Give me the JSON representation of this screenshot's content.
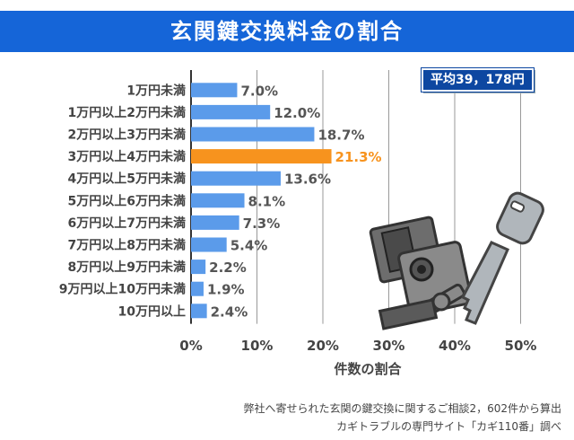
{
  "title": "玄関鍵交換料金の割合",
  "average_label": "平均39，178円",
  "footer": {
    "line1": "弊社へ寄せられた玄関の鍵交換に関するご相談2，602件から算出",
    "line2": "カギトラブルの専門サイト「カギ110番」調べ"
  },
  "chart_data": {
    "type": "bar",
    "orientation": "horizontal",
    "title": "玄関鍵交換料金の割合",
    "xlabel": "件数の割合",
    "ylabel": "",
    "xlim": [
      0,
      55
    ],
    "xticks": [
      0,
      10,
      20,
      30,
      40,
      50
    ],
    "xtick_labels": [
      "0%",
      "10%",
      "20%",
      "30%",
      "40%",
      "50%"
    ],
    "categories": [
      "1万円未満",
      "1万円以上2万円未満",
      "2万円以上3万円未満",
      "3万円以上4万円未満",
      "4万円以上5万円未満",
      "5万円以上6万円未満",
      "6万円以上7万円未満",
      "7万円以上8万円未満",
      "8万円以上9万円未満",
      "9万円以上10万円未満",
      "10万円以上"
    ],
    "values": [
      7.0,
      12.0,
      18.7,
      21.3,
      13.6,
      8.1,
      7.3,
      5.4,
      2.2,
      1.9,
      2.4
    ],
    "value_labels": [
      "7.0%",
      "12.0%",
      "18.7%",
      "21.3%",
      "13.6%",
      "8.1%",
      "7.3%",
      "5.4%",
      "2.2%",
      "1.9%",
      "2.4%"
    ],
    "highlight_index": 3,
    "colors": {
      "bar": "#5b9bea",
      "highlight": "#f7931e",
      "label": "#555555",
      "highlight_label": "#f7931e"
    }
  }
}
